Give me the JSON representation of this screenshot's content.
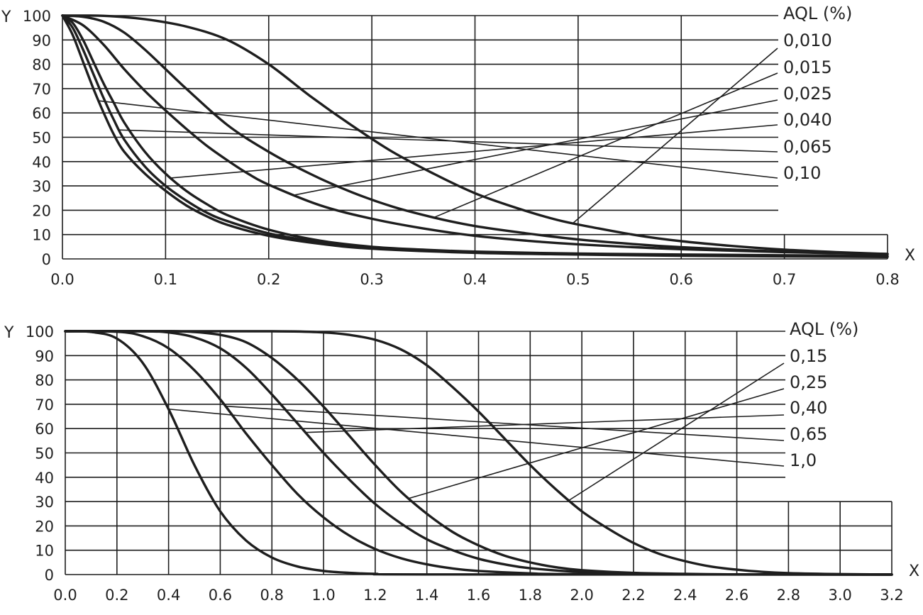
{
  "colors": {
    "ink": "#1e1e1e",
    "background": "#ffffff"
  },
  "chart_data": [
    {
      "type": "line",
      "xlabel": "X",
      "ylabel": "Y",
      "xlim": [
        0,
        0.8
      ],
      "ylim": [
        0,
        100
      ],
      "x_ticks": [
        "0.0",
        "0.1",
        "0.2",
        "0.3",
        "0.4",
        "0.5",
        "0.6",
        "0.7",
        "0.8"
      ],
      "y_ticks": [
        "0",
        "10",
        "20",
        "30",
        "40",
        "50",
        "60",
        "70",
        "80",
        "90",
        "100"
      ],
      "legend_title": "AQL (%)",
      "legend_placement": "right",
      "grid": true,
      "series": [
        {
          "name": "0,010",
          "points": [
            [
              0.0,
              100
            ],
            [
              0.04,
              99.9
            ],
            [
              0.08,
              98.5
            ],
            [
              0.12,
              95.5
            ],
            [
              0.16,
              90
            ],
            [
              0.2,
              80
            ],
            [
              0.24,
              67
            ],
            [
              0.28,
              55
            ],
            [
              0.32,
              44
            ],
            [
              0.36,
              35
            ],
            [
              0.4,
              27
            ],
            [
              0.44,
              21
            ],
            [
              0.48,
              16
            ],
            [
              0.52,
              12.5
            ],
            [
              0.56,
              9.5
            ],
            [
              0.6,
              7.3
            ],
            [
              0.65,
              5.3
            ],
            [
              0.7,
              3.8
            ],
            [
              0.75,
              2.8
            ],
            [
              0.8,
              2
            ]
          ]
        },
        {
          "name": "0,015",
          "points": [
            [
              0.0,
              100
            ],
            [
              0.02,
              99.5
            ],
            [
              0.04,
              97.5
            ],
            [
              0.06,
              93
            ],
            [
              0.08,
              86
            ],
            [
              0.1,
              78
            ],
            [
              0.12,
              70
            ],
            [
              0.16,
              55
            ],
            [
              0.2,
              44
            ],
            [
              0.24,
              35
            ],
            [
              0.28,
              27.5
            ],
            [
              0.32,
              21.5
            ],
            [
              0.36,
              17
            ],
            [
              0.4,
              13.5
            ],
            [
              0.45,
              10.5
            ],
            [
              0.5,
              8
            ],
            [
              0.55,
              6.2
            ],
            [
              0.6,
              4.8
            ],
            [
              0.7,
              3
            ],
            [
              0.8,
              2
            ]
          ]
        },
        {
          "name": "0,025",
          "points": [
            [
              0.0,
              100
            ],
            [
              0.02,
              96
            ],
            [
              0.04,
              88
            ],
            [
              0.06,
              78
            ],
            [
              0.08,
              69
            ],
            [
              0.1,
              61
            ],
            [
              0.12,
              53.5
            ],
            [
              0.14,
              46.5
            ],
            [
              0.16,
              40.5
            ],
            [
              0.18,
              35
            ],
            [
              0.2,
              30.5
            ],
            [
              0.25,
              22
            ],
            [
              0.3,
              16.5
            ],
            [
              0.35,
              12.5
            ],
            [
              0.4,
              9.5
            ],
            [
              0.45,
              7.5
            ],
            [
              0.5,
              6
            ],
            [
              0.6,
              4
            ],
            [
              0.7,
              2.8
            ],
            [
              0.8,
              2
            ]
          ]
        },
        {
          "name": "0,040",
          "points": [
            [
              0.0,
              100
            ],
            [
              0.01,
              97
            ],
            [
              0.02,
              90
            ],
            [
              0.03,
              81
            ],
            [
              0.04,
              72
            ],
            [
              0.05,
              64
            ],
            [
              0.06,
              56
            ],
            [
              0.08,
              44
            ],
            [
              0.1,
              35
            ],
            [
              0.12,
              28
            ],
            [
              0.14,
              22.5
            ],
            [
              0.16,
              18
            ],
            [
              0.2,
              12
            ],
            [
              0.25,
              7.5
            ],
            [
              0.3,
              5
            ],
            [
              0.35,
              3.8
            ],
            [
              0.4,
              3
            ],
            [
              0.5,
              2.2
            ],
            [
              0.6,
              1.8
            ],
            [
              0.8,
              1.2
            ]
          ]
        },
        {
          "name": "0,065",
          "points": [
            [
              0.0,
              100
            ],
            [
              0.01,
              95
            ],
            [
              0.02,
              86
            ],
            [
              0.03,
              76
            ],
            [
              0.04,
              66
            ],
            [
              0.05,
              57
            ],
            [
              0.06,
              49
            ],
            [
              0.08,
              38
            ],
            [
              0.1,
              30
            ],
            [
              0.12,
              24
            ],
            [
              0.14,
              19
            ],
            [
              0.16,
              15.5
            ],
            [
              0.2,
              10.5
            ],
            [
              0.25,
              6.8
            ],
            [
              0.3,
              4.5
            ],
            [
              0.4,
              2.8
            ],
            [
              0.5,
              2
            ],
            [
              0.6,
              1.5
            ],
            [
              0.8,
              1
            ]
          ]
        },
        {
          "name": "0,10",
          "points": [
            [
              0.0,
              100
            ],
            [
              0.01,
              92
            ],
            [
              0.02,
              81
            ],
            [
              0.03,
              70
            ],
            [
              0.04,
              60
            ],
            [
              0.05,
              51
            ],
            [
              0.06,
              44
            ],
            [
              0.08,
              35
            ],
            [
              0.1,
              28
            ],
            [
              0.12,
              22
            ],
            [
              0.14,
              17.5
            ],
            [
              0.16,
              14
            ],
            [
              0.2,
              9.5
            ],
            [
              0.25,
              6.2
            ],
            [
              0.3,
              4.2
            ],
            [
              0.4,
              2.5
            ],
            [
              0.5,
              1.8
            ],
            [
              0.6,
              1.3
            ],
            [
              0.8,
              0.8
            ]
          ]
        }
      ]
    },
    {
      "type": "line",
      "xlabel": "X",
      "ylabel": "Y",
      "xlim": [
        0,
        3.2
      ],
      "ylim": [
        0,
        100
      ],
      "x_ticks": [
        "0.0",
        "0.2",
        "0.4",
        "0.6",
        "0.8",
        "1.0",
        "1.2",
        "1.4",
        "1.6",
        "1.8",
        "2.0",
        "2.2",
        "2.4",
        "2.6",
        "2.8",
        "3.0",
        "3.2"
      ],
      "y_ticks": [
        "0",
        "10",
        "20",
        "30",
        "40",
        "50",
        "60",
        "70",
        "80",
        "90",
        "100"
      ],
      "legend_title": "AQL (%)",
      "legend_placement": "right",
      "grid": true,
      "series": [
        {
          "name": "0,15",
          "points": [
            [
              0.0,
              100
            ],
            [
              0.8,
              100
            ],
            [
              1.0,
              99.5
            ],
            [
              1.1,
              98.5
            ],
            [
              1.2,
              96.5
            ],
            [
              1.3,
              92.5
            ],
            [
              1.4,
              86
            ],
            [
              1.5,
              77
            ],
            [
              1.6,
              67
            ],
            [
              1.7,
              56
            ],
            [
              1.8,
              45
            ],
            [
              1.9,
              35
            ],
            [
              2.0,
              26
            ],
            [
              2.1,
              19
            ],
            [
              2.2,
              13
            ],
            [
              2.3,
              8.5
            ],
            [
              2.4,
              5.5
            ],
            [
              2.5,
              3.3
            ],
            [
              2.6,
              2
            ],
            [
              2.7,
              1.1
            ],
            [
              2.8,
              0.6
            ],
            [
              3.0,
              0.2
            ],
            [
              3.2,
              0
            ]
          ]
        },
        {
          "name": "0,25",
          "points": [
            [
              0.0,
              100
            ],
            [
              0.4,
              100
            ],
            [
              0.5,
              99.7
            ],
            [
              0.6,
              98.5
            ],
            [
              0.7,
              95.5
            ],
            [
              0.8,
              89
            ],
            [
              0.9,
              80
            ],
            [
              1.0,
              69
            ],
            [
              1.1,
              57
            ],
            [
              1.2,
              45
            ],
            [
              1.3,
              34
            ],
            [
              1.4,
              25
            ],
            [
              1.5,
              17.5
            ],
            [
              1.6,
              12
            ],
            [
              1.7,
              7.8
            ],
            [
              1.8,
              5
            ],
            [
              1.9,
              3
            ],
            [
              2.0,
              1.8
            ],
            [
              2.2,
              0.7
            ],
            [
              2.4,
              0.3
            ],
            [
              2.6,
              0.1
            ],
            [
              3.2,
              0
            ]
          ]
        },
        {
          "name": "0,40",
          "points": [
            [
              0.0,
              100
            ],
            [
              0.3,
              100
            ],
            [
              0.4,
              99.5
            ],
            [
              0.5,
              97.5
            ],
            [
              0.6,
              93
            ],
            [
              0.7,
              85
            ],
            [
              0.8,
              74
            ],
            [
              0.9,
              62
            ],
            [
              1.0,
              50
            ],
            [
              1.1,
              39
            ],
            [
              1.2,
              29
            ],
            [
              1.3,
              21
            ],
            [
              1.4,
              14.5
            ],
            [
              1.5,
              10
            ],
            [
              1.6,
              6.5
            ],
            [
              1.7,
              4.2
            ],
            [
              1.8,
              2.6
            ],
            [
              2.0,
              1
            ],
            [
              2.2,
              0.4
            ],
            [
              2.4,
              0.1
            ],
            [
              3.2,
              0
            ]
          ]
        },
        {
          "name": "0,65",
          "points": [
            [
              0.0,
              100
            ],
            [
              0.2,
              99.8
            ],
            [
              0.3,
              98
            ],
            [
              0.4,
              93
            ],
            [
              0.5,
              84
            ],
            [
              0.6,
              72
            ],
            [
              0.7,
              58
            ],
            [
              0.8,
              45
            ],
            [
              0.9,
              33
            ],
            [
              1.0,
              23.5
            ],
            [
              1.1,
              16
            ],
            [
              1.2,
              10.5
            ],
            [
              1.3,
              6.7
            ],
            [
              1.4,
              4.2
            ],
            [
              1.5,
              2.5
            ],
            [
              1.6,
              1.5
            ],
            [
              1.8,
              0.5
            ],
            [
              2.0,
              0.2
            ],
            [
              3.2,
              0
            ]
          ]
        },
        {
          "name": "1,0",
          "points": [
            [
              0.0,
              100
            ],
            [
              0.1,
              99.7
            ],
            [
              0.2,
              97
            ],
            [
              0.3,
              87
            ],
            [
              0.4,
              68
            ],
            [
              0.5,
              45
            ],
            [
              0.6,
              26
            ],
            [
              0.7,
              14
            ],
            [
              0.8,
              7
            ],
            [
              0.9,
              3.3
            ],
            [
              1.0,
              1.5
            ],
            [
              1.1,
              0.7
            ],
            [
              1.2,
              0.3
            ],
            [
              1.4,
              0.05
            ],
            [
              3.2,
              0
            ]
          ]
        }
      ]
    }
  ]
}
